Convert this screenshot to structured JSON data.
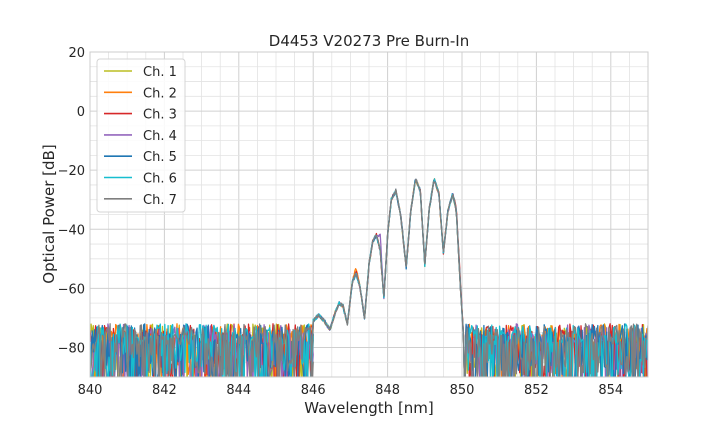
{
  "chart_data": {
    "type": "line",
    "title": "D4453 V20273 Pre Burn-In",
    "xlabel": "Wavelength [nm]",
    "ylabel": "Optical Power [dB]",
    "xlim": [
      840,
      855
    ],
    "ylim": [
      -90,
      20
    ],
    "xticks": [
      840,
      842,
      844,
      846,
      848,
      850,
      852,
      854
    ],
    "yticks": [
      20,
      0,
      -20,
      -40,
      -60,
      -80
    ],
    "xtick_labels": [
      "840",
      "842",
      "844",
      "846",
      "848",
      "850",
      "852",
      "854"
    ],
    "ytick_labels": [
      "20",
      "0",
      "−20",
      "−40",
      "−60",
      "−80"
    ],
    "grid": true,
    "legend_position": "upper-left",
    "envelope": [
      [
        846.0,
        -71
      ],
      [
        846.15,
        -69
      ],
      [
        846.3,
        -71
      ],
      [
        846.45,
        -74
      ],
      [
        846.6,
        -68
      ],
      [
        846.7,
        -65
      ],
      [
        846.8,
        -66
      ],
      [
        846.92,
        -72
      ],
      [
        847.05,
        -58
      ],
      [
        847.15,
        -55
      ],
      [
        847.25,
        -59
      ],
      [
        847.38,
        -70
      ],
      [
        847.5,
        -52
      ],
      [
        847.6,
        -44
      ],
      [
        847.7,
        -42
      ],
      [
        847.8,
        -47
      ],
      [
        847.9,
        -63
      ],
      [
        848.0,
        -42
      ],
      [
        848.1,
        -30
      ],
      [
        848.22,
        -27
      ],
      [
        848.35,
        -35
      ],
      [
        848.5,
        -53
      ],
      [
        848.62,
        -34
      ],
      [
        848.75,
        -23
      ],
      [
        848.88,
        -27
      ],
      [
        849.0,
        -52
      ],
      [
        849.12,
        -33
      ],
      [
        849.25,
        -23
      ],
      [
        849.38,
        -28
      ],
      [
        849.5,
        -48
      ],
      [
        849.62,
        -34
      ],
      [
        849.75,
        -28
      ],
      [
        849.85,
        -34
      ],
      [
        849.95,
        -58
      ],
      [
        850.05,
        -78
      ]
    ],
    "noise_floor": -79,
    "series": [
      {
        "name": "Ch. 1",
        "color": "#bcbd22",
        "offsets": [
          0,
          0,
          0,
          0,
          0,
          0,
          0,
          0,
          0,
          1,
          0,
          0,
          0,
          0,
          0,
          0,
          0,
          0,
          0,
          0,
          0,
          0,
          0,
          0,
          0,
          0,
          0,
          0,
          0,
          0,
          0,
          0,
          0,
          0,
          0
        ]
      },
      {
        "name": "Ch. 2",
        "color": "#ff7f0e",
        "offsets": [
          0,
          0,
          0,
          0,
          0,
          0,
          0,
          0,
          0,
          2,
          0,
          0,
          0,
          0,
          0,
          0,
          0,
          0,
          0,
          0,
          0,
          0,
          0,
          0,
          0,
          0,
          0,
          0,
          0,
          0,
          0,
          0,
          0,
          0,
          0
        ]
      },
      {
        "name": "Ch. 3",
        "color": "#d62728",
        "offsets": [
          0,
          0,
          0,
          0,
          0,
          0,
          0,
          0,
          0,
          1,
          0,
          0,
          0,
          0,
          0,
          0,
          0,
          0,
          0,
          0,
          0,
          0,
          0,
          0,
          0,
          0,
          0,
          0,
          0,
          0,
          0,
          0,
          1,
          2,
          0
        ]
      },
      {
        "name": "Ch. 4",
        "color": "#9467bd",
        "offsets": [
          0,
          0,
          0,
          0,
          0,
          0,
          0,
          0,
          0,
          0,
          0,
          0,
          0,
          0,
          0,
          5,
          0,
          0,
          0,
          0,
          0,
          0,
          0,
          0,
          0,
          0,
          0,
          0,
          0,
          0,
          0,
          0,
          0,
          0,
          0
        ]
      },
      {
        "name": "Ch. 5",
        "color": "#1f77b4",
        "offsets": [
          0,
          0,
          0,
          0,
          0,
          0,
          0,
          0,
          0,
          0,
          0,
          0,
          0,
          0,
          0,
          0,
          0,
          0,
          0,
          0,
          0,
          0,
          0,
          0,
          0,
          0,
          0,
          0,
          0,
          0,
          0,
          0,
          0,
          0,
          0
        ]
      },
      {
        "name": "Ch. 6",
        "color": "#17becf",
        "offsets": [
          0,
          0,
          0,
          0,
          0,
          0,
          0,
          0,
          0,
          0,
          0,
          0,
          0,
          0,
          0,
          0,
          0,
          0,
          0,
          0,
          0,
          0,
          0,
          0,
          0,
          0,
          0,
          0,
          0,
          0,
          0,
          0,
          0,
          0,
          0
        ]
      },
      {
        "name": "Ch. 7",
        "color": "#7f7f7f",
        "offsets": [
          0,
          0,
          0,
          0,
          0,
          0,
          0,
          0,
          0,
          0,
          0,
          0,
          0,
          0,
          0,
          0,
          0,
          0,
          0,
          0,
          0,
          0,
          0,
          0,
          0,
          0,
          0,
          0,
          0,
          0,
          0,
          0,
          0,
          0,
          0
        ]
      }
    ]
  }
}
